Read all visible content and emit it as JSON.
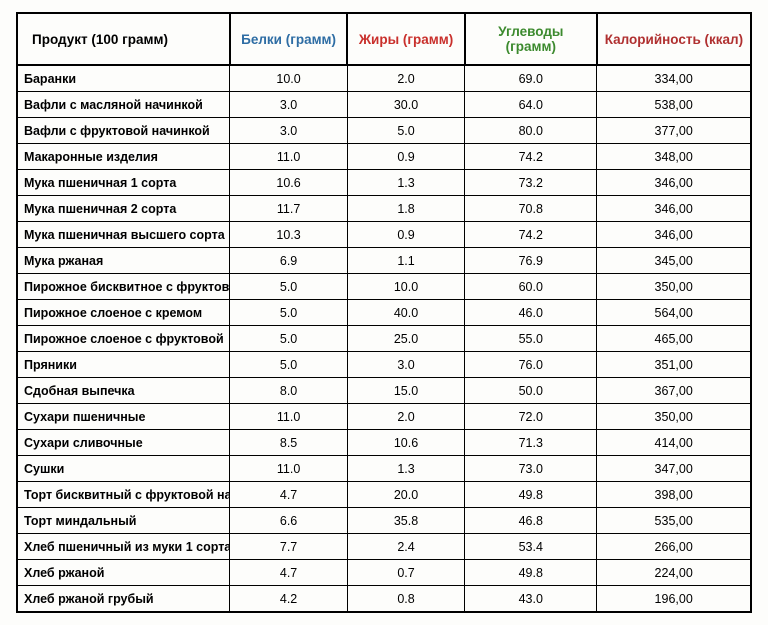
{
  "table": {
    "columns": [
      {
        "label": "Продукт (100 грамм)",
        "color": "#000000",
        "width": "29%",
        "align": "left"
      },
      {
        "label": "Белки (грамм)",
        "color": "#2e6da4",
        "width": "16%",
        "align": "center"
      },
      {
        "label": "Жиры (грамм)",
        "color": "#c9302c",
        "width": "16%",
        "align": "center"
      },
      {
        "label": "Углеводы (грамм)",
        "color": "#3c8a2e",
        "width": "18%",
        "align": "center"
      },
      {
        "label": "Калорийность (ккал)",
        "color": "#b03030",
        "width": "21%",
        "align": "center"
      }
    ],
    "rows": [
      [
        "Баранки",
        "10.0",
        "2.0",
        "69.0",
        "334,00"
      ],
      [
        "Вафли с масляной начинкой",
        "3.0",
        "30.0",
        "64.0",
        "538,00"
      ],
      [
        "Вафли с фруктовой начинкой",
        "3.0",
        "5.0",
        "80.0",
        "377,00"
      ],
      [
        "Макаронные изделия",
        "11.0",
        "0.9",
        "74.2",
        "348,00"
      ],
      [
        "Мука пшеничная 1 сорта",
        "10.6",
        "1.3",
        "73.2",
        "346,00"
      ],
      [
        "Мука пшеничная 2 сорта",
        "11.7",
        "1.8",
        "70.8",
        "346,00"
      ],
      [
        "Мука пшеничная высшего сорта",
        "10.3",
        "0.9",
        "74.2",
        "346,00"
      ],
      [
        "Мука ржаная",
        "6.9",
        "1.1",
        "76.9",
        "345,00"
      ],
      [
        "Пирожное бисквитное с фруктов",
        "5.0",
        "10.0",
        "60.0",
        "350,00"
      ],
      [
        "Пирожное слоеное с кремом",
        "5.0",
        "40.0",
        "46.0",
        "564,00"
      ],
      [
        "Пирожное слоеное с фруктовой",
        "5.0",
        "25.0",
        "55.0",
        "465,00"
      ],
      [
        "Пряники",
        "5.0",
        "3.0",
        "76.0",
        "351,00"
      ],
      [
        "Сдобная выпечка",
        "8.0",
        "15.0",
        "50.0",
        "367,00"
      ],
      [
        "Сухари пшеничные",
        "11.0",
        "2.0",
        "72.0",
        "350,00"
      ],
      [
        "Сухари сливочные",
        "8.5",
        "10.6",
        "71.3",
        "414,00"
      ],
      [
        "Сушки",
        "11.0",
        "1.3",
        "73.0",
        "347,00"
      ],
      [
        "Торт бисквитный с фруктовой нач",
        "4.7",
        "20.0",
        "49.8",
        "398,00"
      ],
      [
        "Торт миндальный",
        "6.6",
        "35.8",
        "46.8",
        "535,00"
      ],
      [
        "Хлеб пшеничный из муки 1 сорта",
        "7.7",
        "2.4",
        "53.4",
        "266,00"
      ],
      [
        "Хлеб ржаной",
        "4.7",
        "0.7",
        "49.8",
        "224,00"
      ],
      [
        "Хлеб ржаной грубый",
        "4.2",
        "0.8",
        "43.0",
        "196,00"
      ]
    ],
    "header_fontsize": 13.5,
    "body_fontsize": 12.5,
    "border_color": "#000000",
    "background_color": "#fdfdfb"
  }
}
